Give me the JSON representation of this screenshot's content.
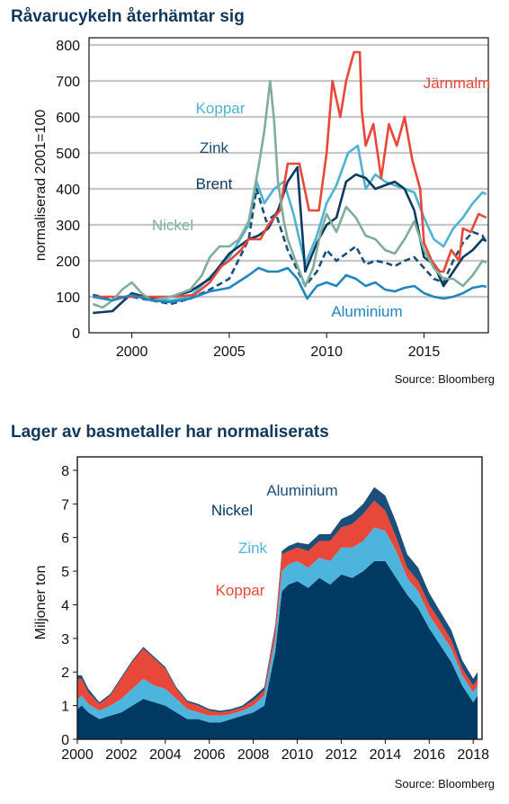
{
  "chart_data": [
    {
      "type": "line",
      "title": "Råvarucykeln återhämtar sig",
      "ylabel": "normaliserad 2001=100",
      "xlim": [
        1997.8,
        2018.3
      ],
      "ylim": [
        0,
        820
      ],
      "yticks": [
        0,
        100,
        200,
        300,
        400,
        500,
        600,
        700,
        800
      ],
      "xticks": [
        2000,
        2005,
        2010,
        2015
      ],
      "grid": true,
      "source": "Source: Bloomberg",
      "series": [
        {
          "name": "Koppar",
          "color": "#4eb3d3",
          "dash": false,
          "x": [
            1998,
            1999,
            2000,
            2001,
            2002,
            2003,
            2004,
            2005,
            2006,
            2006.4,
            2006.8,
            2007.3,
            2007.8,
            2008.3,
            2008.9,
            2009.5,
            2010,
            2010.5,
            2011.1,
            2011.6,
            2012,
            2012.5,
            2013,
            2013.5,
            2014,
            2014.5,
            2015,
            2015.5,
            2016,
            2016.5,
            2017,
            2017.5,
            2018,
            2018.2
          ],
          "y": [
            100,
            90,
            105,
            95,
            90,
            100,
            155,
            210,
            300,
            420,
            360,
            400,
            420,
            330,
            190,
            270,
            360,
            410,
            500,
            520,
            400,
            440,
            420,
            410,
            400,
            390,
            320,
            260,
            240,
            290,
            320,
            360,
            390,
            385
          ]
        },
        {
          "name": "Zink",
          "color": "#1b4f7a",
          "dash": true,
          "x": [
            1998,
            1999,
            2000,
            2001,
            2002,
            2003,
            2004,
            2005,
            2006,
            2006.4,
            2006.9,
            2007.4,
            2008,
            2008.9,
            2009.5,
            2010,
            2010.5,
            2011,
            2011.5,
            2012,
            2012.5,
            2013,
            2013.5,
            2014,
            2014.5,
            2015,
            2015.5,
            2016,
            2016.5,
            2017,
            2017.5,
            2018,
            2018.2
          ],
          "y": [
            105,
            95,
            100,
            90,
            80,
            95,
            120,
            150,
            260,
            400,
            310,
            330,
            230,
            130,
            170,
            230,
            200,
            220,
            240,
            190,
            200,
            195,
            185,
            200,
            210,
            180,
            150,
            140,
            200,
            250,
            280,
            270,
            250
          ]
        },
        {
          "name": "Brent",
          "color": "#0b3a63",
          "dash": false,
          "x": [
            1998,
            1999,
            2000,
            2001,
            2002,
            2003,
            2004,
            2005,
            2006,
            2006.5,
            2007,
            2007.5,
            2008,
            2008.5,
            2008.9,
            2009.5,
            2010,
            2010.5,
            2011,
            2011.5,
            2012,
            2012.5,
            2013,
            2013.5,
            2014,
            2014.5,
            2015,
            2015.5,
            2016,
            2016.5,
            2017,
            2017.5,
            2018,
            2018.2
          ],
          "y": [
            55,
            60,
            110,
            95,
            100,
            115,
            150,
            220,
            260,
            270,
            290,
            340,
            420,
            460,
            170,
            250,
            300,
            320,
            420,
            440,
            430,
            400,
            410,
            420,
            400,
            340,
            210,
            190,
            130,
            170,
            210,
            230,
            260,
            255
          ]
        },
        {
          "name": "Järnmalm",
          "color": "#e8473a",
          "dash": false,
          "x": [
            1998,
            2002,
            2003.2,
            2004,
            2004.6,
            2005,
            2005.6,
            2006,
            2006.6,
            2007,
            2007.6,
            2008,
            2008.6,
            2009.1,
            2009.6,
            2010,
            2010.3,
            2010.7,
            2011,
            2011.4,
            2011.7,
            2011.8,
            2012,
            2012.4,
            2012.8,
            2013.2,
            2013.6,
            2014,
            2014.4,
            2014.8,
            2015,
            2015.4,
            2015.8,
            2016,
            2016.4,
            2016.8,
            2017,
            2017.4,
            2017.8,
            2018.2
          ],
          "y": [
            100,
            100,
            105,
            140,
            185,
            200,
            230,
            260,
            260,
            300,
            340,
            470,
            470,
            340,
            340,
            500,
            700,
            600,
            700,
            780,
            780,
            620,
            520,
            580,
            430,
            580,
            520,
            600,
            480,
            400,
            250,
            200,
            170,
            170,
            230,
            200,
            290,
            280,
            330,
            320
          ]
        },
        {
          "name": "Nickel",
          "color": "#7fad9e",
          "dash": false,
          "x": [
            1998,
            1998.5,
            1999,
            1999.5,
            2000,
            2000.5,
            2001,
            2002,
            2003,
            2003.6,
            2004,
            2004.5,
            2005,
            2005.5,
            2006,
            2006.5,
            2006.8,
            2007.1,
            2007.3,
            2007.5,
            2007.8,
            2008,
            2008.4,
            2008.9,
            2009.3,
            2009.7,
            2010,
            2010.5,
            2011,
            2011.5,
            2012,
            2012.5,
            2013,
            2013.5,
            2014,
            2014.5,
            2015,
            2015.5,
            2016,
            2016.5,
            2017,
            2017.5,
            2018,
            2018.2
          ],
          "y": [
            80,
            70,
            90,
            120,
            140,
            110,
            90,
            100,
            120,
            160,
            210,
            240,
            240,
            260,
            310,
            460,
            560,
            700,
            590,
            420,
            310,
            260,
            200,
            130,
            180,
            280,
            330,
            280,
            350,
            320,
            270,
            260,
            230,
            220,
            260,
            310,
            230,
            180,
            150,
            150,
            130,
            160,
            200,
            195
          ]
        },
        {
          "name": "Aluminium",
          "color": "#1f86c1",
          "dash": false,
          "x": [
            1998,
            1999,
            2000,
            2001,
            2002,
            2003,
            2004,
            2005,
            2006,
            2006.5,
            2007,
            2007.5,
            2008,
            2008.5,
            2009,
            2009.5,
            2010,
            2010.5,
            2011,
            2011.5,
            2012,
            2012.5,
            2013,
            2013.5,
            2014,
            2014.5,
            2015,
            2015.5,
            2016,
            2016.5,
            2017,
            2017.5,
            2018,
            2018.2
          ],
          "y": [
            100,
            90,
            105,
            90,
            85,
            95,
            115,
            125,
            160,
            180,
            170,
            170,
            180,
            150,
            95,
            130,
            140,
            130,
            160,
            150,
            130,
            140,
            120,
            115,
            125,
            130,
            110,
            100,
            95,
            100,
            110,
            125,
            130,
            128
          ]
        }
      ],
      "labels": [
        {
          "text": "Järnmalm",
          "series": "Järnmalm"
        },
        {
          "text": "Koppar",
          "series": "Koppar"
        },
        {
          "text": "Zink",
          "series": "Zink"
        },
        {
          "text": "Brent",
          "series": "Brent"
        },
        {
          "text": "Nickel",
          "series": "Nickel"
        },
        {
          "text": "Aluminium",
          "series": "Aluminium"
        }
      ]
    },
    {
      "type": "area",
      "stacked": true,
      "title": "Lager av basmetaller har normaliserats",
      "ylabel": "Miljoner ton",
      "xlim": [
        2000,
        2018.4
      ],
      "ylim": [
        0,
        8.4
      ],
      "yticks": [
        0,
        1,
        2,
        3,
        4,
        5,
        6,
        7,
        8
      ],
      "xticks": [
        2000,
        2002,
        2004,
        2006,
        2008,
        2010,
        2012,
        2014,
        2016,
        2018
      ],
      "grid": false,
      "source": "Source: Bloomberg",
      "x": [
        2000,
        2000.2,
        2000.5,
        2001,
        2001.5,
        2002,
        2002.5,
        2003,
        2003.5,
        2004,
        2004.5,
        2005,
        2005.5,
        2006,
        2006.5,
        2007,
        2007.5,
        2008,
        2008.5,
        2009,
        2009.3,
        2009.6,
        2010,
        2010.5,
        2011,
        2011.5,
        2012,
        2012.5,
        2013,
        2013.5,
        2014,
        2014.5,
        2015,
        2015.5,
        2016,
        2016.5,
        2017,
        2017.5,
        2018,
        2018.2
      ],
      "series": [
        {
          "name": "Aluminium",
          "color": "#003a63",
          "values": [
            0.9,
            1.0,
            0.8,
            0.6,
            0.7,
            0.8,
            1.0,
            1.2,
            1.1,
            1.0,
            0.8,
            0.6,
            0.6,
            0.5,
            0.5,
            0.6,
            0.7,
            0.8,
            1.0,
            2.6,
            4.4,
            4.6,
            4.7,
            4.5,
            4.8,
            4.6,
            4.9,
            4.8,
            5.0,
            5.3,
            5.3,
            4.8,
            4.3,
            3.9,
            3.3,
            2.8,
            2.3,
            1.6,
            1.1,
            1.3
          ]
        },
        {
          "name": "Zink",
          "color": "#4db5dd",
          "values": [
            0.3,
            0.3,
            0.25,
            0.25,
            0.3,
            0.4,
            0.5,
            0.6,
            0.5,
            0.5,
            0.4,
            0.3,
            0.2,
            0.2,
            0.2,
            0.15,
            0.15,
            0.2,
            0.3,
            0.4,
            0.6,
            0.6,
            0.6,
            0.6,
            0.6,
            0.7,
            0.8,
            0.9,
            0.9,
            1.0,
            0.9,
            0.8,
            0.5,
            0.5,
            0.4,
            0.4,
            0.4,
            0.3,
            0.3,
            0.3
          ]
        },
        {
          "name": "Koppar",
          "color": "#e8483a",
          "values": [
            0.6,
            0.5,
            0.35,
            0.2,
            0.3,
            0.6,
            0.8,
            0.9,
            0.8,
            0.6,
            0.3,
            0.2,
            0.2,
            0.15,
            0.1,
            0.1,
            0.1,
            0.15,
            0.15,
            0.3,
            0.5,
            0.4,
            0.4,
            0.5,
            0.5,
            0.6,
            0.6,
            0.7,
            0.8,
            0.8,
            0.6,
            0.4,
            0.3,
            0.3,
            0.3,
            0.3,
            0.25,
            0.2,
            0.2,
            0.2
          ]
        },
        {
          "name": "Nickel",
          "color": "#1b4f7a",
          "values": [
            0.1,
            0.1,
            0.1,
            0.05,
            0.05,
            0.05,
            0.05,
            0.05,
            0.05,
            0.05,
            0.05,
            0.05,
            0.05,
            0.05,
            0.05,
            0.05,
            0.05,
            0.1,
            0.1,
            0.1,
            0.1,
            0.15,
            0.15,
            0.2,
            0.2,
            0.2,
            0.25,
            0.3,
            0.3,
            0.4,
            0.45,
            0.45,
            0.4,
            0.4,
            0.35,
            0.3,
            0.3,
            0.25,
            0.2,
            0.2
          ]
        }
      ],
      "labels": [
        {
          "text": "Aluminium",
          "color": "#1b4f7a"
        },
        {
          "text": "Nickel",
          "color": "#003a63"
        },
        {
          "text": "Zink",
          "color": "#4db5dd"
        },
        {
          "text": "Koppar",
          "color": "#e8483a"
        }
      ]
    }
  ]
}
